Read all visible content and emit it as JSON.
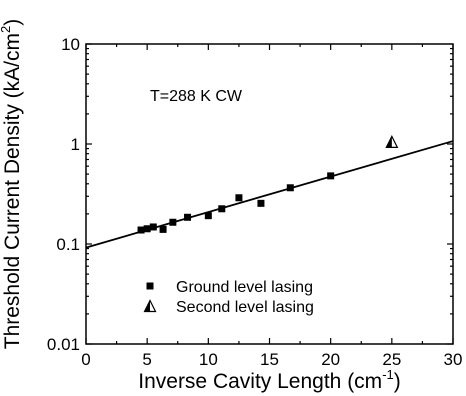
{
  "chart_data": {
    "type": "scatter",
    "xlabel_main": "Inverse Cavity Length (cm",
    "xlabel_sup": "-1",
    "xlabel_close": ")",
    "ylabel_main": "Threshold Current Density (kA/cm",
    "ylabel_sup": "2",
    "ylabel_close": ")",
    "xlim": [
      0,
      30
    ],
    "ylim": [
      0.01,
      10
    ],
    "yscale": "log",
    "grid": false,
    "x_ticks": [
      0,
      5,
      10,
      15,
      20,
      25,
      30
    ],
    "x_tick_labels": [
      "0",
      "5",
      "10",
      "15",
      "20",
      "25",
      "30"
    ],
    "y_ticks": [
      0.01,
      0.1,
      1,
      10
    ],
    "y_tick_labels": [
      "0.01",
      "0.1",
      "1",
      "10"
    ],
    "annotation": "T=288 K CW",
    "legend_position": "lower-left",
    "series": [
      {
        "name": "Ground level lasing",
        "marker": "filled-square",
        "color": "#000000",
        "x": [
          4.5,
          5.0,
          5.5,
          6.3,
          7.1,
          8.3,
          10.0,
          11.1,
          12.5,
          14.3,
          16.7,
          20.0
        ],
        "y": [
          0.138,
          0.142,
          0.148,
          0.14,
          0.165,
          0.185,
          0.192,
          0.225,
          0.29,
          0.255,
          0.365,
          0.48
        ]
      },
      {
        "name": "Second level lasing",
        "marker": "half-filled-triangle",
        "color": "#000000",
        "x": [
          25.0
        ],
        "y": [
          1.05
        ]
      }
    ],
    "fit_line": {
      "x": [
        0,
        30
      ],
      "y": [
        0.092,
        1.07
      ],
      "color": "#000000"
    }
  }
}
